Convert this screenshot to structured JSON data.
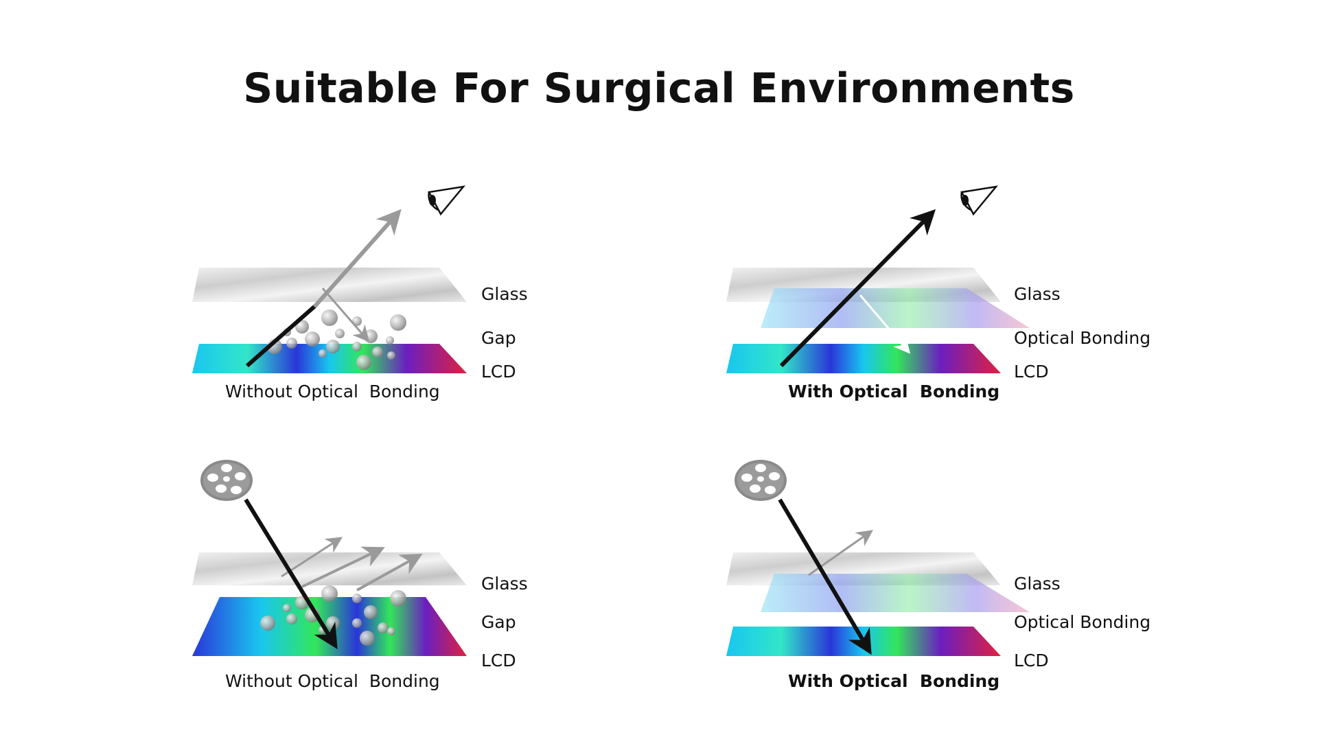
{
  "title": "Suitable For Surgical Environments",
  "panels": [
    {
      "id": "top-left",
      "viewpoint": "eye-icon",
      "caption": "Without Optical  Bonding",
      "caption_bold": false,
      "layers": [
        "Glass",
        "Gap",
        "LCD"
      ]
    },
    {
      "id": "top-right",
      "viewpoint": "eye-icon",
      "caption": "With Optical  Bonding",
      "caption_bold": true,
      "layers": [
        "Glass",
        "Optical Bonding",
        "LCD"
      ]
    },
    {
      "id": "bottom-left",
      "viewpoint": "surgical-lamp-icon",
      "caption": "Without Optical  Bonding",
      "caption_bold": false,
      "layers": [
        "Glass",
        "Gap",
        "LCD"
      ]
    },
    {
      "id": "bottom-right",
      "viewpoint": "surgical-lamp-icon",
      "caption": "With Optical  Bonding",
      "caption_bold": true,
      "layers": [
        "Glass",
        "Optical Bonding",
        "LCD"
      ]
    }
  ],
  "colors": {
    "glass": "#d6d6d6",
    "lcd_cyan": "#19c6f0",
    "lcd_green": "#32e65a",
    "lcd_blue": "#2a36d8",
    "lcd_purple": "#6a1fc0",
    "lcd_red": "#e02040",
    "arrow_dark": "#111111",
    "arrow_gray": "#9a9a9a",
    "bubble": "#a8a8a8"
  }
}
